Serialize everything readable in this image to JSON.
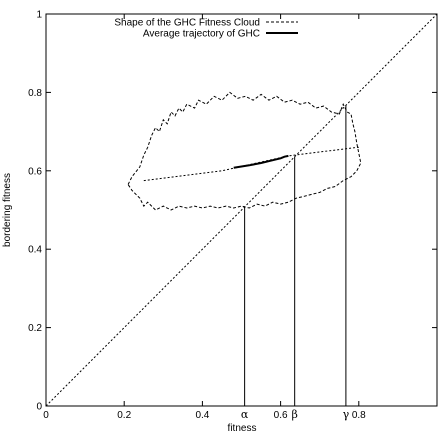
{
  "chart_data": {
    "type": "line",
    "xlabel": "fitness",
    "ylabel": "bordering fitness",
    "xlim": [
      0,
      1
    ],
    "ylim": [
      0,
      1
    ],
    "x_ticks": [
      "0",
      "0.2",
      "0.4",
      "0.6",
      "0.8"
    ],
    "x_tick_values": [
      0,
      0.2,
      0.4,
      0.6,
      0.8
    ],
    "y_ticks": [
      "0",
      "0.2",
      "0.4",
      "0.6",
      "0.8",
      "1"
    ],
    "y_tick_values": [
      0,
      0.2,
      0.4,
      0.6,
      0.8,
      1
    ],
    "grid": false,
    "legend_position": "top-left",
    "series": [
      {
        "name": "Shape of the GHC Fitness Cloud",
        "style": "dashed",
        "closed": true,
        "points": [
          [
            0.21,
            0.565
          ],
          [
            0.22,
            0.585
          ],
          [
            0.24,
            0.61
          ],
          [
            0.25,
            0.64
          ],
          [
            0.26,
            0.66
          ],
          [
            0.27,
            0.69
          ],
          [
            0.28,
            0.71
          ],
          [
            0.29,
            0.7
          ],
          [
            0.3,
            0.73
          ],
          [
            0.31,
            0.72
          ],
          [
            0.32,
            0.75
          ],
          [
            0.33,
            0.74
          ],
          [
            0.34,
            0.76
          ],
          [
            0.35,
            0.75
          ],
          [
            0.36,
            0.77
          ],
          [
            0.38,
            0.76
          ],
          [
            0.39,
            0.78
          ],
          [
            0.41,
            0.77
          ],
          [
            0.43,
            0.79
          ],
          [
            0.45,
            0.78
          ],
          [
            0.47,
            0.8
          ],
          [
            0.49,
            0.785
          ],
          [
            0.51,
            0.79
          ],
          [
            0.53,
            0.78
          ],
          [
            0.55,
            0.795
          ],
          [
            0.57,
            0.78
          ],
          [
            0.59,
            0.79
          ],
          [
            0.61,
            0.775
          ],
          [
            0.63,
            0.78
          ],
          [
            0.65,
            0.77
          ],
          [
            0.67,
            0.775
          ],
          [
            0.69,
            0.76
          ],
          [
            0.71,
            0.765
          ],
          [
            0.73,
            0.75
          ],
          [
            0.75,
            0.745
          ],
          [
            0.76,
            0.77
          ],
          [
            0.77,
            0.75
          ],
          [
            0.78,
            0.745
          ],
          [
            0.785,
            0.72
          ],
          [
            0.79,
            0.7
          ],
          [
            0.795,
            0.67
          ],
          [
            0.8,
            0.645
          ],
          [
            0.805,
            0.62
          ],
          [
            0.795,
            0.6
          ],
          [
            0.78,
            0.585
          ],
          [
            0.76,
            0.575
          ],
          [
            0.74,
            0.56
          ],
          [
            0.72,
            0.555
          ],
          [
            0.7,
            0.545
          ],
          [
            0.68,
            0.54
          ],
          [
            0.66,
            0.535
          ],
          [
            0.64,
            0.53
          ],
          [
            0.62,
            0.52
          ],
          [
            0.6,
            0.515
          ],
          [
            0.58,
            0.52
          ],
          [
            0.56,
            0.51
          ],
          [
            0.54,
            0.515
          ],
          [
            0.52,
            0.505
          ],
          [
            0.5,
            0.51
          ],
          [
            0.48,
            0.505
          ],
          [
            0.46,
            0.51
          ],
          [
            0.44,
            0.505
          ],
          [
            0.42,
            0.51
          ],
          [
            0.4,
            0.505
          ],
          [
            0.38,
            0.51
          ],
          [
            0.36,
            0.505
          ],
          [
            0.34,
            0.51
          ],
          [
            0.32,
            0.5
          ],
          [
            0.3,
            0.51
          ],
          [
            0.28,
            0.5
          ],
          [
            0.26,
            0.52
          ],
          [
            0.25,
            0.51
          ],
          [
            0.24,
            0.53
          ],
          [
            0.23,
            0.54
          ],
          [
            0.22,
            0.55
          ],
          [
            0.21,
            0.565
          ]
        ]
      },
      {
        "name": "Average trajectory of GHC",
        "style": "solid",
        "points": [
          [
            0.48,
            0.608
          ],
          [
            0.52,
            0.614
          ],
          [
            0.55,
            0.62
          ],
          [
            0.58,
            0.627
          ],
          [
            0.6,
            0.632
          ],
          [
            0.61,
            0.636
          ],
          [
            0.62,
            0.638
          ]
        ]
      },
      {
        "name": "",
        "style": "dotted",
        "points": [
          [
            0.25,
            0.575
          ],
          [
            0.45,
            0.6
          ],
          [
            0.62,
            0.638
          ],
          [
            0.78,
            0.658
          ],
          [
            0.8,
            0.66
          ]
        ]
      },
      {
        "name": "",
        "style": "dotted",
        "points": [
          [
            0,
            0
          ],
          [
            1,
            1
          ]
        ]
      }
    ],
    "annotations": [
      {
        "label": "α",
        "x": 0.508
      },
      {
        "label": "β",
        "x": 0.636
      },
      {
        "label": "γ",
        "x": 0.767
      }
    ]
  }
}
